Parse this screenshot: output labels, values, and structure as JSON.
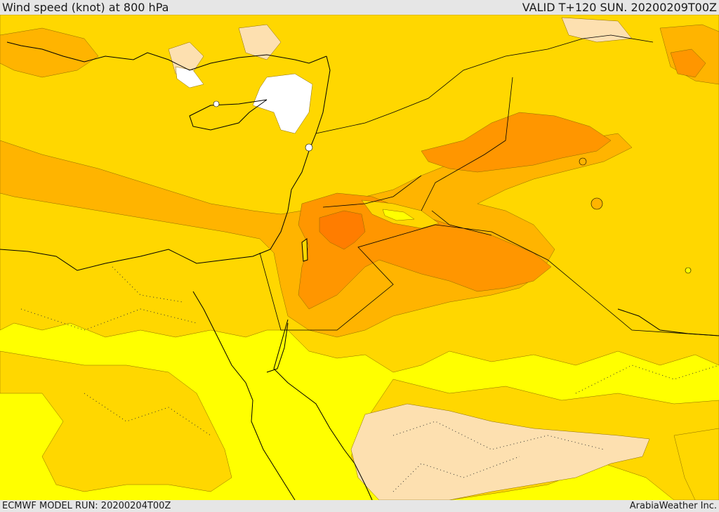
{
  "header": {
    "title": "Wind speed (knot) at 800 hPa",
    "valid": "VALID T+120 SUN. 20200209T00Z"
  },
  "footer": {
    "model_run": "ECMWF MODEL RUN: 20200204T00Z",
    "credit": "ArabiaWeather Inc."
  },
  "colors": {
    "header_bg": "#e6e6e6",
    "band_lightest": "#ffffff",
    "band_light": "#fde0b0",
    "band_yellow": "#ffff00",
    "band_gold": "#ffd700",
    "band_amber": "#ffb400",
    "band_orange": "#ff9600",
    "band_dark_orange": "#ff7d00",
    "coastline": "#000000"
  }
}
